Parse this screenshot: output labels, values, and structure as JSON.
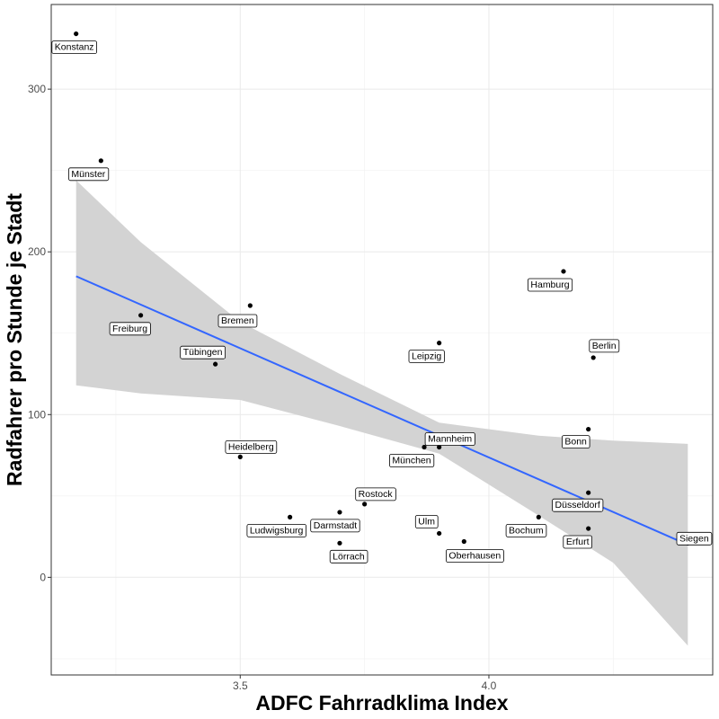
{
  "chart_data": {
    "type": "scatter",
    "xlabel": "ADFC Fahrradklima Index",
    "ylabel": "Radfahrer pro Stunde je Stadt",
    "xlim": [
      3.12,
      4.45
    ],
    "ylim": [
      -60,
      352
    ],
    "x_ticks": [
      3.5,
      4.0
    ],
    "x_tick_labels": [
      "3.5",
      "4.0"
    ],
    "x_minor_ticks": [
      3.25,
      3.75,
      4.25
    ],
    "y_ticks": [
      0,
      100,
      200,
      300
    ],
    "y_tick_labels": [
      "0",
      "100",
      "200",
      "300"
    ],
    "y_minor_ticks": [
      -50,
      50,
      150,
      250
    ],
    "grid": true,
    "points": [
      {
        "label": "Konstanz",
        "x": 3.17,
        "y": 334
      },
      {
        "label": "Münster",
        "x": 3.22,
        "y": 256
      },
      {
        "label": "Freiburg",
        "x": 3.3,
        "y": 161
      },
      {
        "label": "Bremen",
        "x": 3.52,
        "y": 167
      },
      {
        "label": "Tübingen",
        "x": 3.45,
        "y": 131
      },
      {
        "label": "Heidelberg",
        "x": 3.5,
        "y": 74
      },
      {
        "label": "Ludwigsburg",
        "x": 3.6,
        "y": 37
      },
      {
        "label": "Darmstadt",
        "x": 3.7,
        "y": 40
      },
      {
        "label": "Lörrach",
        "x": 3.7,
        "y": 21
      },
      {
        "label": "Rostock",
        "x": 3.75,
        "y": 45
      },
      {
        "label": "Leipzig",
        "x": 3.9,
        "y": 144
      },
      {
        "label": "München",
        "x": 3.87,
        "y": 80
      },
      {
        "label": "Mannheim",
        "x": 3.9,
        "y": 80
      },
      {
        "label": "Ulm",
        "x": 3.9,
        "y": 27
      },
      {
        "label": "Oberhausen",
        "x": 3.95,
        "y": 22
      },
      {
        "label": "Hamburg",
        "x": 4.15,
        "y": 188
      },
      {
        "label": "Berlin",
        "x": 4.21,
        "y": 135
      },
      {
        "label": "Bonn",
        "x": 4.2,
        "y": 91
      },
      {
        "label": "Düsseldorf",
        "x": 4.2,
        "y": 52
      },
      {
        "label": "Bochum",
        "x": 4.1,
        "y": 37
      },
      {
        "label": "Erfurt",
        "x": 4.2,
        "y": 30
      },
      {
        "label": "Siegen",
        "x": 4.4,
        "y": 21
      }
    ],
    "regression": {
      "method": "linear",
      "x": [
        3.17,
        4.4
      ],
      "y": [
        185,
        20
      ],
      "color": "#3366FF",
      "ci_x": [
        3.17,
        3.3,
        3.5,
        3.7,
        3.9,
        4.1,
        4.25,
        4.4
      ],
      "ci_upper": [
        244,
        206,
        157,
        125,
        95,
        87,
        84,
        82
      ],
      "ci_lower": [
        118,
        113,
        109,
        93,
        76,
        38,
        9,
        -42
      ],
      "band_color": "#D3D3D3"
    }
  }
}
